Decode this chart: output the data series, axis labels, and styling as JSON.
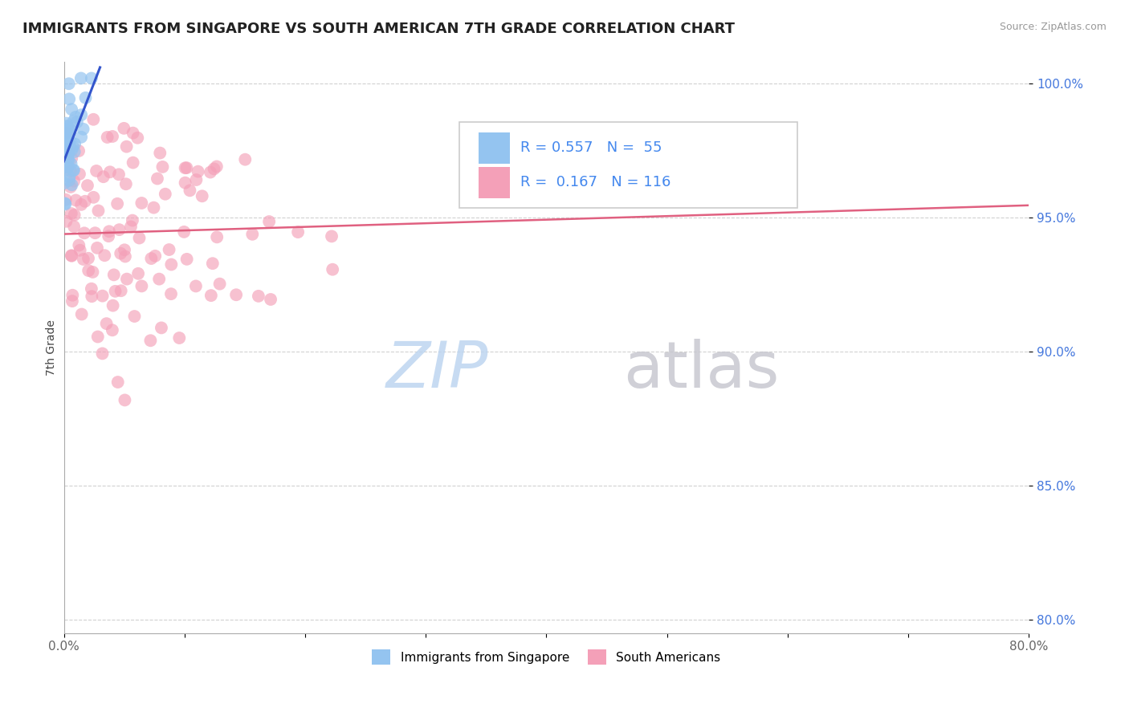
{
  "title": "IMMIGRANTS FROM SINGAPORE VS SOUTH AMERICAN 7TH GRADE CORRELATION CHART",
  "source": "Source: ZipAtlas.com",
  "ylabel": "7th Grade",
  "xlim": [
    0.0,
    0.8
  ],
  "ylim": [
    0.795,
    1.008
  ],
  "yticks": [
    0.8,
    0.85,
    0.9,
    0.95,
    1.0
  ],
  "yticklabels": [
    "80.0%",
    "85.0%",
    "90.0%",
    "95.0%",
    "100.0%"
  ],
  "xtick_positions": [
    0.0,
    0.1,
    0.2,
    0.3,
    0.4,
    0.5,
    0.6,
    0.7,
    0.8
  ],
  "xticklabels": [
    "0.0%",
    "",
    "",
    "",
    "",
    "",
    "",
    "",
    "80.0%"
  ],
  "color_singapore": "#94C4F0",
  "color_south_american": "#F4A0B8",
  "trendline_color_singapore": "#3355CC",
  "trendline_color_south_american": "#E06080",
  "legend_r1_text": "R = 0.557",
  "legend_n1_text": "N =  55",
  "legend_r2_text": "R =  0.167",
  "legend_n2_text": "N = 116",
  "legend_color1": "#4488EE",
  "legend_color2": "#4488EE",
  "watermark_zip_color": "#BDD5F0",
  "watermark_atlas_color": "#C8C8D0",
  "sing_trendline_x": [
    0.0,
    0.03
  ],
  "sing_trendline_y": [
    0.955,
    1.001
  ],
  "sa_trendline_x": [
    0.0,
    0.8
  ],
  "sa_trendline_y": [
    0.944,
    0.972
  ]
}
